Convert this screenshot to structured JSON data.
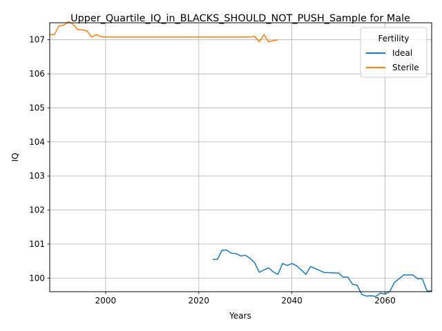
{
  "chart_data": {
    "type": "line",
    "title": "Upper_Quartile_IQ_in_BLACKS_SHOULD_NOT_PUSH_Sample for Male",
    "xlabel": "Years",
    "ylabel": "IQ",
    "xlim": [
      1988,
      2070
    ],
    "ylim": [
      99.6,
      107.5
    ],
    "x_ticks": [
      2000,
      2020,
      2040,
      2060
    ],
    "y_ticks": [
      100,
      101,
      102,
      103,
      104,
      105,
      106,
      107
    ],
    "grid": true,
    "legend": {
      "title": "Fertility",
      "position": "top-right"
    },
    "series": [
      {
        "name": "Ideal",
        "color": "#1f77b4",
        "x": [
          2023,
          2024,
          2025,
          2026,
          2027,
          2028,
          2029,
          2030,
          2031,
          2032,
          2033,
          2034,
          2035,
          2036,
          2037,
          2038,
          2039,
          2040,
          2041,
          2042,
          2043,
          2044,
          2045,
          2046,
          2047,
          2048,
          2049,
          2050,
          2051,
          2052,
          2053,
          2054,
          2055,
          2056,
          2057,
          2058,
          2059,
          2060,
          2061,
          2062,
          2063,
          2064,
          2065,
          2066,
          2067,
          2068,
          2069,
          2070
        ],
        "y": [
          100.55,
          100.55,
          100.82,
          100.82,
          100.73,
          100.72,
          100.65,
          100.67,
          100.58,
          100.45,
          100.17,
          100.24,
          100.3,
          100.18,
          100.11,
          100.43,
          100.37,
          100.43,
          100.36,
          100.24,
          100.11,
          100.34,
          100.28,
          100.22,
          100.16,
          100.16,
          100.15,
          100.15,
          100.03,
          100.03,
          99.82,
          99.79,
          99.52,
          99.47,
          99.48,
          99.46,
          99.56,
          99.53,
          99.6,
          99.87,
          99.98,
          100.09,
          100.09,
          100.09,
          99.98,
          99.98,
          99.62,
          99.62
        ]
      },
      {
        "name": "Sterile",
        "color": "#ff7f0e",
        "x": [
          1988,
          1989,
          1990,
          1991,
          1992,
          1993,
          1994,
          1995,
          1996,
          1997,
          1998,
          1999,
          2000,
          2005,
          2010,
          2015,
          2020,
          2025,
          2030,
          2031,
          2032,
          2033,
          2034,
          2035,
          2036,
          2037
        ],
        "y": [
          107.15,
          107.15,
          107.41,
          107.43,
          107.53,
          107.46,
          107.3,
          107.29,
          107.26,
          107.08,
          107.15,
          107.09,
          107.08,
          107.08,
          107.08,
          107.08,
          107.08,
          107.08,
          107.08,
          107.08,
          107.1,
          106.94,
          107.15,
          106.94,
          106.97,
          107.0
        ]
      }
    ]
  }
}
